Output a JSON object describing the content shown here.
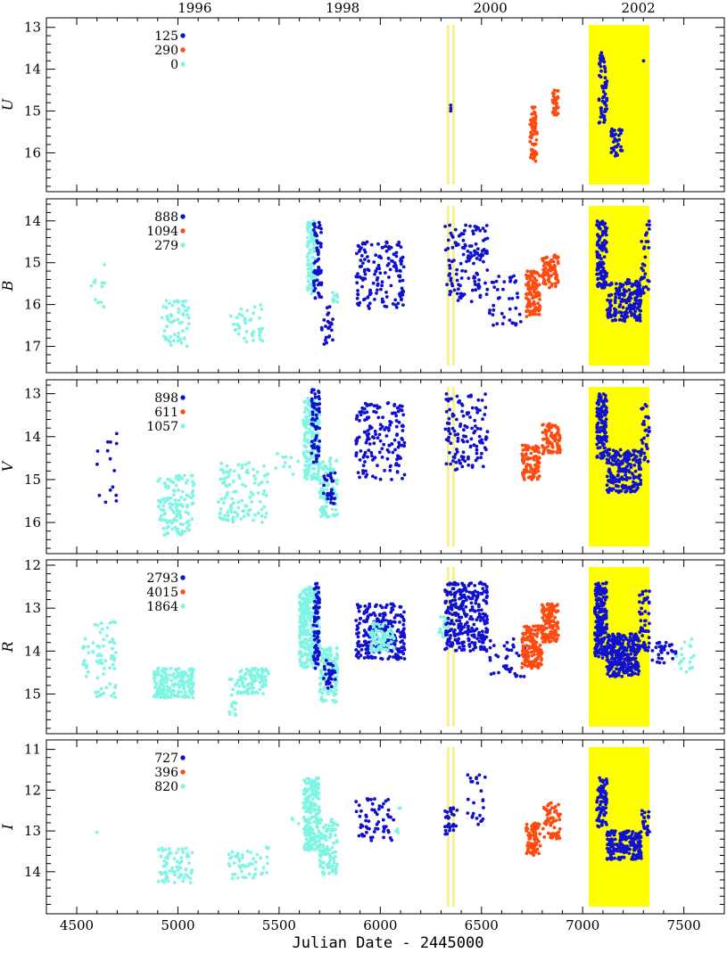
{
  "chart_data": {
    "type": "scatter",
    "xlabel": "Julian Date - 2445000",
    "xlim": [
      4350,
      7700
    ],
    "x_ticks": [
      4500,
      5000,
      5500,
      6000,
      6500,
      7000,
      7500
    ],
    "top_axis": {
      "labels": [
        "1996",
        "1998",
        "2000",
        "2002"
      ],
      "positions_jd_offset": [
        5083,
        5814,
        6544,
        7275
      ]
    },
    "highlight_regions": [
      {
        "type": "line",
        "x": 6335,
        "color": "#f5f07a"
      },
      {
        "type": "line",
        "x": 6362,
        "color": "#f5f07a"
      },
      {
        "type": "band",
        "x": [
          7030,
          7330
        ],
        "color": "#ffff00"
      }
    ],
    "series_colors": [
      "#1010d0",
      "#ff4a10",
      "#7ff5e3"
    ],
    "panels": [
      {
        "band": "U",
        "ylim": [
          16.8,
          12.9
        ],
        "y_ticks": [
          13,
          14,
          15,
          16
        ],
        "counts": [
          "125",
          "290",
          "0"
        ],
        "clusters": [
          {
            "series": 0,
            "x": [
              6345,
              6350
            ],
            "y": [
              14.8,
              15.0
            ],
            "n": 3
          },
          {
            "series": 1,
            "x": [
              6740,
              6775
            ],
            "y": [
              14.9,
              16.2
            ],
            "n": 70
          },
          {
            "series": 1,
            "x": [
              6850,
              6880
            ],
            "y": [
              14.5,
              15.1
            ],
            "n": 40
          },
          {
            "series": 0,
            "x": [
              7080,
              7120
            ],
            "y": [
              13.6,
              15.3
            ],
            "n": 60
          },
          {
            "series": 0,
            "x": [
              7140,
              7200
            ],
            "y": [
              15.4,
              16.1
            ],
            "n": 35
          },
          {
            "series": 0,
            "x": [
              7300,
              7302
            ],
            "y": [
              13.8,
              13.85
            ],
            "n": 1
          }
        ]
      },
      {
        "band": "B",
        "ylim": [
          17.5,
          13.6
        ],
        "y_ticks": [
          14,
          15,
          16,
          17
        ],
        "counts": [
          "888",
          "1094",
          "279"
        ],
        "clusters": [
          {
            "series": 2,
            "x": [
              4560,
              4640
            ],
            "y": [
              14.9,
              16.1
            ],
            "n": 12
          },
          {
            "series": 2,
            "x": [
              4920,
              5060
            ],
            "y": [
              15.9,
              17.0
            ],
            "n": 60
          },
          {
            "series": 2,
            "x": [
              5260,
              5420
            ],
            "y": [
              16.0,
              16.9
            ],
            "n": 40
          },
          {
            "series": 2,
            "x": [
              5640,
              5680
            ],
            "y": [
              14.0,
              15.8
            ],
            "n": 90
          },
          {
            "series": 2,
            "x": [
              5760,
              5790
            ],
            "y": [
              15.7,
              16.0
            ],
            "n": 10
          },
          {
            "series": 0,
            "x": [
              5670,
              5710
            ],
            "y": [
              14.0,
              15.9
            ],
            "n": 60
          },
          {
            "series": 0,
            "x": [
              5710,
              5770
            ],
            "y": [
              16.0,
              17.0
            ],
            "n": 25
          },
          {
            "series": 0,
            "x": [
              5880,
              6120
            ],
            "y": [
              14.5,
              16.1
            ],
            "n": 150
          },
          {
            "series": 0,
            "x": [
              6320,
              6530
            ],
            "y": [
              14.1,
              16.0
            ],
            "n": 130
          },
          {
            "series": 0,
            "x": [
              6530,
              6700
            ],
            "y": [
              15.3,
              16.5
            ],
            "n": 40
          },
          {
            "series": 1,
            "x": [
              6720,
              6790
            ],
            "y": [
              15.2,
              16.3
            ],
            "n": 120
          },
          {
            "series": 1,
            "x": [
              6800,
              6880
            ],
            "y": [
              14.8,
              15.6
            ],
            "n": 80
          },
          {
            "series": 0,
            "x": [
              7070,
              7120
            ],
            "y": [
              14.0,
              15.6
            ],
            "n": 120
          },
          {
            "series": 0,
            "x": [
              7120,
              7290
            ],
            "y": [
              15.4,
              16.4
            ],
            "n": 180
          },
          {
            "series": 0,
            "x": [
              7290,
              7330
            ],
            "y": [
              14.0,
              15.8
            ],
            "n": 30
          }
        ]
      },
      {
        "band": "V",
        "ylim": [
          16.6,
          12.8
        ],
        "y_ticks": [
          13,
          14,
          15,
          16
        ],
        "counts": [
          "898",
          "611",
          "1057"
        ],
        "clusters": [
          {
            "series": 0,
            "x": [
              4600,
              4700
            ],
            "y": [
              13.9,
              15.6
            ],
            "n": 15
          },
          {
            "series": 2,
            "x": [
              4900,
              5080
            ],
            "y": [
              14.9,
              16.3
            ],
            "n": 130
          },
          {
            "series": 2,
            "x": [
              5200,
              5450
            ],
            "y": [
              14.6,
              16.0
            ],
            "n": 110
          },
          {
            "series": 2,
            "x": [
              5480,
              5600
            ],
            "y": [
              14.3,
              15.0
            ],
            "n": 10
          },
          {
            "series": 2,
            "x": [
              5620,
              5700
            ],
            "y": [
              13.1,
              15.0
            ],
            "n": 200
          },
          {
            "series": 2,
            "x": [
              5700,
              5790
            ],
            "y": [
              14.5,
              15.9
            ],
            "n": 90
          },
          {
            "series": 0,
            "x": [
              5660,
              5700
            ],
            "y": [
              12.9,
              14.6
            ],
            "n": 60
          },
          {
            "series": 0,
            "x": [
              5720,
              5780
            ],
            "y": [
              14.8,
              15.6
            ],
            "n": 30
          },
          {
            "series": 0,
            "x": [
              5880,
              6120
            ],
            "y": [
              13.2,
              15.0
            ],
            "n": 160
          },
          {
            "series": 0,
            "x": [
              6320,
              6530
            ],
            "y": [
              13.0,
              14.8
            ],
            "n": 120
          },
          {
            "series": 1,
            "x": [
              6700,
              6790
            ],
            "y": [
              14.2,
              15.0
            ],
            "n": 100
          },
          {
            "series": 1,
            "x": [
              6800,
              6890
            ],
            "y": [
              13.7,
              14.4
            ],
            "n": 80
          },
          {
            "series": 0,
            "x": [
              7070,
              7120
            ],
            "y": [
              13.0,
              14.5
            ],
            "n": 120
          },
          {
            "series": 0,
            "x": [
              7120,
              7290
            ],
            "y": [
              14.3,
              15.3
            ],
            "n": 200
          },
          {
            "series": 0,
            "x": [
              7290,
              7330
            ],
            "y": [
              13.2,
              14.6
            ],
            "n": 30
          }
        ]
      },
      {
        "band": "R",
        "ylim": [
          15.8,
          12.0
        ],
        "y_ticks": [
          12,
          13,
          14,
          15
        ],
        "counts": [
          "2793",
          "4015",
          "1864"
        ],
        "clusters": [
          {
            "series": 2,
            "x": [
              4530,
              4560
            ],
            "y": [
              13.7,
              14.6
            ],
            "n": 15
          },
          {
            "series": 2,
            "x": [
              4580,
              4700
            ],
            "y": [
              13.2,
              15.1
            ],
            "n": 60
          },
          {
            "series": 2,
            "x": [
              4880,
              5080
            ],
            "y": [
              14.4,
              15.1
            ],
            "n": 180
          },
          {
            "series": 2,
            "x": [
              5250,
              5290
            ],
            "y": [
              14.6,
              15.5
            ],
            "n": 15
          },
          {
            "series": 2,
            "x": [
              5290,
              5450
            ],
            "y": [
              14.4,
              15.0
            ],
            "n": 90
          },
          {
            "series": 2,
            "x": [
              5600,
              5700
            ],
            "y": [
              12.5,
              14.4
            ],
            "n": 300
          },
          {
            "series": 2,
            "x": [
              5700,
              5790
            ],
            "y": [
              13.9,
              15.2
            ],
            "n": 120
          },
          {
            "series": 0,
            "x": [
              5670,
              5700
            ],
            "y": [
              12.4,
              14.4
            ],
            "n": 80
          },
          {
            "series": 0,
            "x": [
              5720,
              5780
            ],
            "y": [
              14.2,
              14.9
            ],
            "n": 30
          },
          {
            "series": 0,
            "x": [
              5880,
              6120
            ],
            "y": [
              12.9,
              14.2
            ],
            "n": 250
          },
          {
            "series": 2,
            "x": [
              5950,
              6070
            ],
            "y": [
              13.3,
              14.0
            ],
            "n": 80
          },
          {
            "series": 2,
            "x": [
              6290,
              6340
            ],
            "y": [
              13.2,
              13.7
            ],
            "n": 20
          },
          {
            "series": 0,
            "x": [
              6320,
              6530
            ],
            "y": [
              12.4,
              14.0
            ],
            "n": 300
          },
          {
            "series": 0,
            "x": [
              6540,
              6720
            ],
            "y": [
              13.7,
              14.6
            ],
            "n": 40
          },
          {
            "series": 1,
            "x": [
              6700,
              6800
            ],
            "y": [
              13.4,
              14.4
            ],
            "n": 140
          },
          {
            "series": 1,
            "x": [
              6800,
              6880
            ],
            "y": [
              12.9,
              13.8
            ],
            "n": 120
          },
          {
            "series": 0,
            "x": [
              7060,
              7120
            ],
            "y": [
              12.4,
              14.2
            ],
            "n": 200
          },
          {
            "series": 0,
            "x": [
              7120,
              7280
            ],
            "y": [
              13.6,
              14.6
            ],
            "n": 300
          },
          {
            "series": 0,
            "x": [
              7280,
              7330
            ],
            "y": [
              12.6,
              14.0
            ],
            "n": 50
          },
          {
            "series": 0,
            "x": [
              7340,
              7460
            ],
            "y": [
              13.8,
              14.3
            ],
            "n": 30
          },
          {
            "series": 2,
            "x": [
              7460,
              7550
            ],
            "y": [
              13.7,
              14.5
            ],
            "n": 20
          }
        ]
      },
      {
        "band": "I",
        "ylim": [
          14.9,
          10.9
        ],
        "y_ticks": [
          11,
          12,
          13,
          14
        ],
        "counts": [
          "727",
          "396",
          "820"
        ],
        "clusters": [
          {
            "series": 2,
            "x": [
              4598,
              4602
            ],
            "y": [
              13.0,
              13.05
            ],
            "n": 1
          },
          {
            "series": 2,
            "x": [
              4900,
              5080
            ],
            "y": [
              13.4,
              14.3
            ],
            "n": 70
          },
          {
            "series": 2,
            "x": [
              5250,
              5450
            ],
            "y": [
              13.4,
              14.2
            ],
            "n": 50
          },
          {
            "series": 2,
            "x": [
              5560,
              5600
            ],
            "y": [
              12.6,
              12.9
            ],
            "n": 3
          },
          {
            "series": 2,
            "x": [
              5620,
              5700
            ],
            "y": [
              11.7,
              13.5
            ],
            "n": 200
          },
          {
            "series": 2,
            "x": [
              5700,
              5790
            ],
            "y": [
              12.7,
              14.1
            ],
            "n": 100
          },
          {
            "series": 0,
            "x": [
              5880,
              6070
            ],
            "y": [
              12.2,
              13.3
            ],
            "n": 60
          },
          {
            "series": 2,
            "x": [
              6070,
              6100
            ],
            "y": [
              12.4,
              13.1
            ],
            "n": 5
          },
          {
            "series": 0,
            "x": [
              6320,
              6380
            ],
            "y": [
              12.4,
              13.1
            ],
            "n": 30
          },
          {
            "series": 0,
            "x": [
              6420,
              6520
            ],
            "y": [
              11.6,
              12.9
            ],
            "n": 25
          },
          {
            "series": 1,
            "x": [
              6720,
              6790
            ],
            "y": [
              12.8,
              13.6
            ],
            "n": 80
          },
          {
            "series": 1,
            "x": [
              6800,
              6890
            ],
            "y": [
              12.3,
              13.2
            ],
            "n": 60
          },
          {
            "series": 0,
            "x": [
              7070,
              7120
            ],
            "y": [
              11.7,
              12.9
            ],
            "n": 80
          },
          {
            "series": 0,
            "x": [
              7120,
              7290
            ],
            "y": [
              13.0,
              13.7
            ],
            "n": 180
          },
          {
            "series": 0,
            "x": [
              7290,
              7330
            ],
            "y": [
              12.5,
              13.1
            ],
            "n": 20
          }
        ]
      }
    ]
  }
}
